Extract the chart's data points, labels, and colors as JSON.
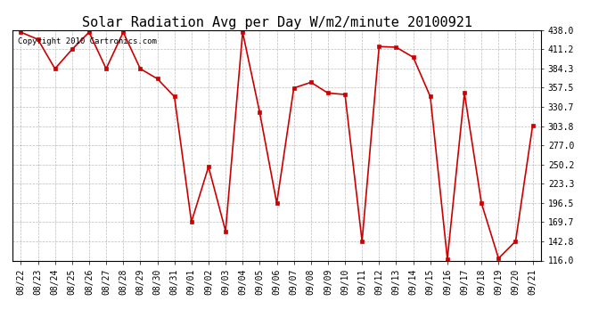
{
  "title": "Solar Radiation Avg per Day W/m2/minute 20100921",
  "copyright_text": "Copyright 2010 Cartronics.com",
  "dates": [
    "08/22",
    "08/23",
    "08/24",
    "08/25",
    "08/26",
    "08/27",
    "08/28",
    "08/29",
    "08/30",
    "08/31",
    "09/01",
    "09/02",
    "09/03",
    "09/04",
    "09/05",
    "09/06",
    "09/07",
    "09/08",
    "09/09",
    "09/10",
    "09/11",
    "09/12",
    "09/13",
    "09/14",
    "09/15",
    "09/16",
    "09/17",
    "09/18",
    "09/19",
    "09/20",
    "09/21"
  ],
  "values": [
    435,
    425,
    384,
    411,
    435,
    384,
    435,
    384,
    370,
    345,
    170,
    247,
    157,
    435,
    323,
    196,
    357,
    365,
    350,
    348,
    143,
    415,
    414,
    400,
    345,
    118,
    350,
    196,
    119,
    143,
    305
  ],
  "y_ticks": [
    116.0,
    142.8,
    169.7,
    196.5,
    223.3,
    250.2,
    277.0,
    303.8,
    330.7,
    357.5,
    384.3,
    411.2,
    438.0
  ],
  "y_min": 116.0,
  "y_max": 438.0,
  "line_color": "#cc0000",
  "marker": "s",
  "marker_size": 2.5,
  "background_color": "#ffffff",
  "grid_color": "#aaaaaa",
  "title_fontsize": 11,
  "tick_fontsize": 7,
  "copyright_fontsize": 6.5
}
